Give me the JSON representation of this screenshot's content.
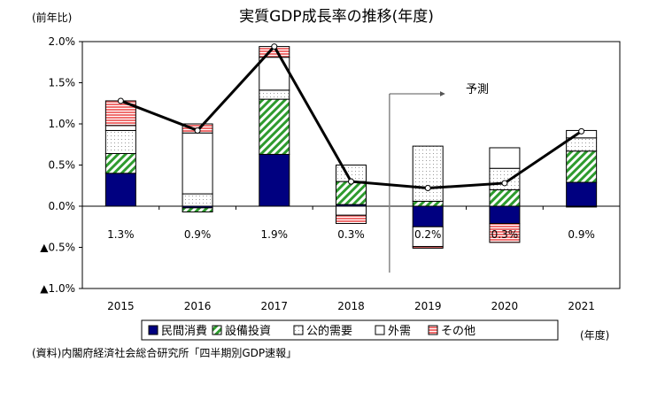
{
  "chart_data": {
    "type": "bar",
    "title": "実質GDP成長率の推移(年度)",
    "ylabel": "(前年比)",
    "xlabel": "(年度)",
    "source": "(資料)内閣府経済社会総合研究所「四半期別GDP速報」",
    "forecast_label": "予測",
    "ylim": [
      -1.0,
      2.0
    ],
    "yticks": [
      2.0,
      1.5,
      1.0,
      0.5,
      0.0,
      -0.5,
      -1.0
    ],
    "ytick_labels": [
      "2.0%",
      "1.5%",
      "1.0%",
      "0.5%",
      "0.0%",
      "▲0.5%",
      "▲1.0%"
    ],
    "categories": [
      "2015",
      "2016",
      "2017",
      "2018",
      "2019",
      "2020",
      "2021"
    ],
    "series": [
      {
        "name": "民間消費",
        "color": "#000080",
        "pattern": "solid",
        "values": [
          0.4,
          -0.02,
          0.63,
          0.02,
          -0.25,
          -0.21,
          0.29
        ]
      },
      {
        "name": "設備投資",
        "color": "#2e9b2e",
        "pattern": "diagonal",
        "values": [
          0.24,
          -0.05,
          0.67,
          0.28,
          0.06,
          0.2,
          0.38
        ]
      },
      {
        "name": "公的需要",
        "color": "#999999",
        "pattern": "dots",
        "values": [
          0.28,
          0.15,
          0.11,
          0.2,
          0.67,
          0.26,
          0.16
        ]
      },
      {
        "name": "外需",
        "color": "#ffffff",
        "pattern": "blank",
        "values": [
          0.06,
          0.74,
          0.4,
          -0.11,
          -0.24,
          0.25,
          0.09
        ]
      },
      {
        "name": "その他",
        "color": "#f07070",
        "pattern": "horizontal",
        "values": [
          0.3,
          0.11,
          0.13,
          -0.1,
          -0.02,
          -0.23,
          -0.01
        ]
      }
    ],
    "line": {
      "values": [
        1.28,
        0.92,
        1.94,
        0.3,
        0.22,
        0.28,
        0.91
      ]
    },
    "data_labels": [
      "1.3%",
      "0.9%",
      "1.9%",
      "0.3%",
      "0.2%",
      "0.3%",
      "0.9%"
    ],
    "forecast_start": "2019",
    "grid": false,
    "legend_position": "bottom"
  }
}
